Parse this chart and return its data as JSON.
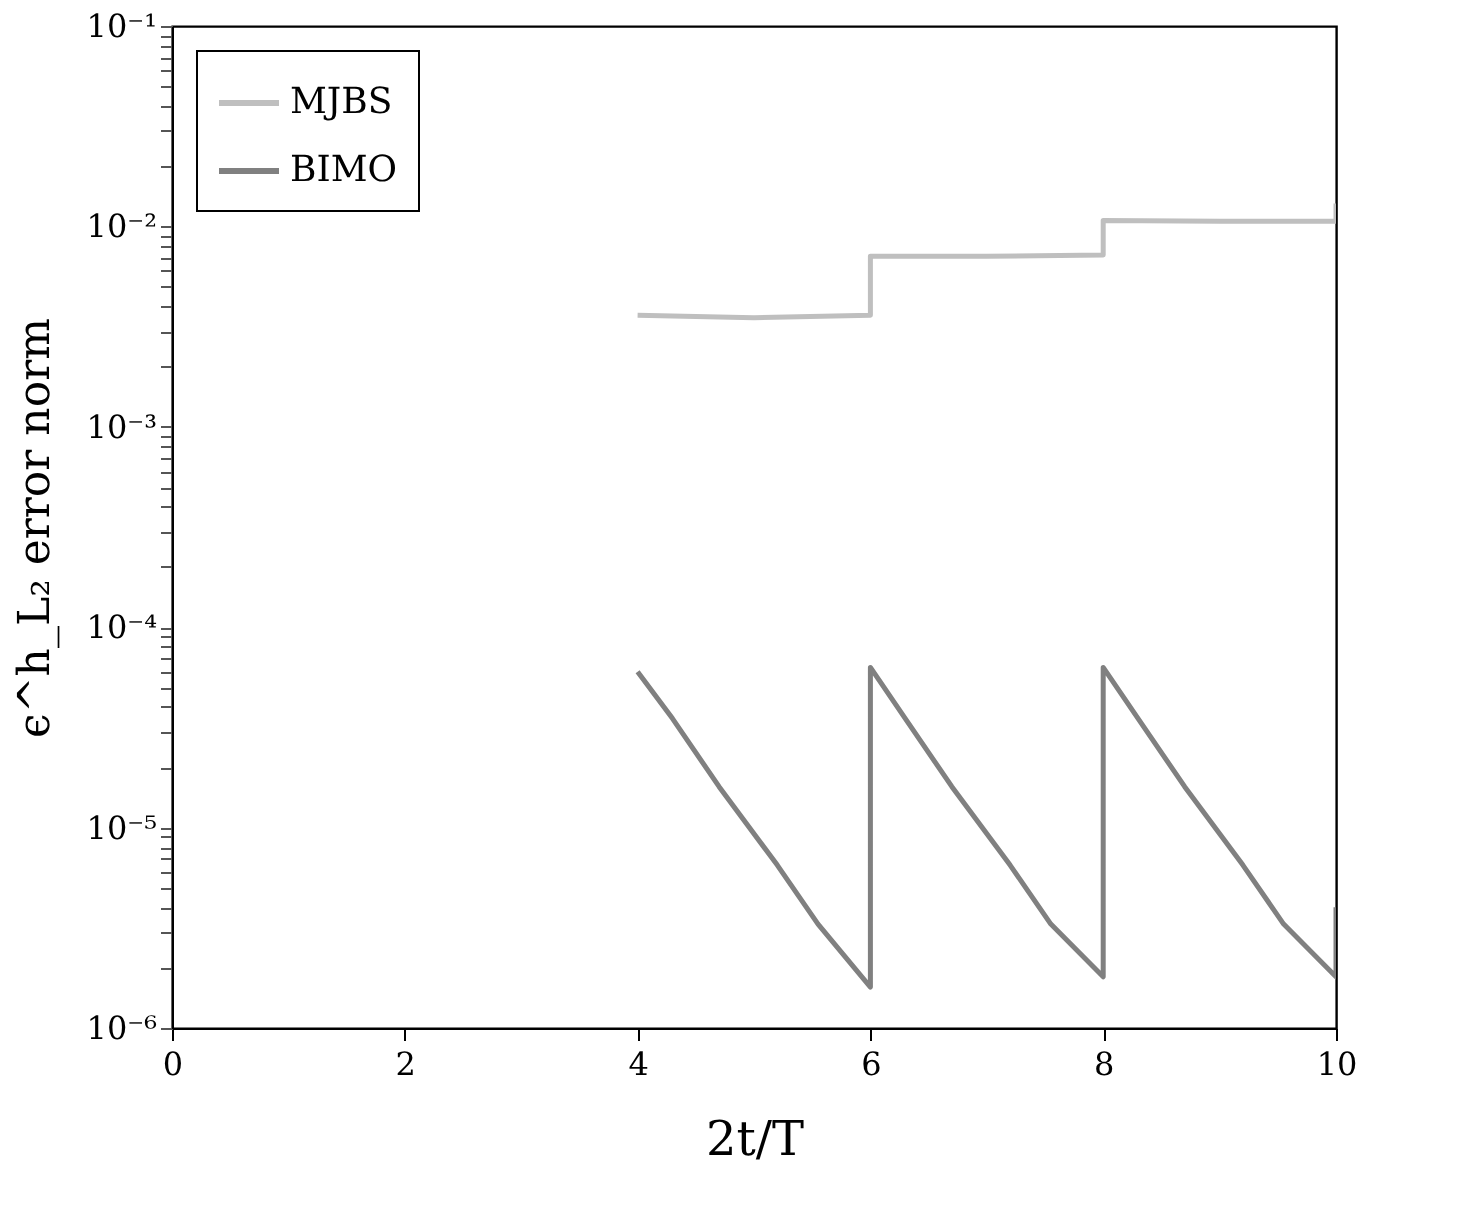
{
  "chart_data": {
    "type": "line",
    "xlabel": "2t/T",
    "ylabel": "ϵ^h_L₂ error norm",
    "xlim": [
      0,
      10
    ],
    "xticks": [
      0,
      2,
      4,
      6,
      8,
      10
    ],
    "ylim": [
      1e-06,
      0.1
    ],
    "yticks": [
      {
        "value": 1e-06,
        "label": "10⁻⁶"
      },
      {
        "value": 2e-06,
        "label": null
      },
      {
        "value": 3e-06,
        "label": null
      },
      {
        "value": 4e-06,
        "label": null
      },
      {
        "value": 5e-06,
        "label": null
      },
      {
        "value": 6e-06,
        "label": null
      },
      {
        "value": 7e-06,
        "label": null
      },
      {
        "value": 8e-06,
        "label": null
      },
      {
        "value": 9e-06,
        "label": null
      },
      {
        "value": 1e-05,
        "label": "10⁻⁵"
      },
      {
        "value": 2e-05,
        "label": null
      },
      {
        "value": 3e-05,
        "label": null
      },
      {
        "value": 4e-05,
        "label": null
      },
      {
        "value": 5e-05,
        "label": null
      },
      {
        "value": 6e-05,
        "label": null
      },
      {
        "value": 7e-05,
        "label": null
      },
      {
        "value": 8e-05,
        "label": null
      },
      {
        "value": 9e-05,
        "label": null
      },
      {
        "value": 0.0001,
        "label": "10⁻⁴"
      },
      {
        "value": 0.0002,
        "label": null
      },
      {
        "value": 0.0003,
        "label": null
      },
      {
        "value": 0.0004,
        "label": null
      },
      {
        "value": 0.0005,
        "label": null
      },
      {
        "value": 0.0006,
        "label": null
      },
      {
        "value": 0.0007,
        "label": null
      },
      {
        "value": 0.0008,
        "label": null
      },
      {
        "value": 0.0009,
        "label": null
      },
      {
        "value": 0.001,
        "label": "10⁻³"
      },
      {
        "value": 0.002,
        "label": null
      },
      {
        "value": 0.003,
        "label": null
      },
      {
        "value": 0.004,
        "label": null
      },
      {
        "value": 0.005,
        "label": null
      },
      {
        "value": 0.006,
        "label": null
      },
      {
        "value": 0.007,
        "label": null
      },
      {
        "value": 0.008,
        "label": null
      },
      {
        "value": 0.009,
        "label": null
      },
      {
        "value": 0.01,
        "label": "10⁻²"
      },
      {
        "value": 0.02,
        "label": null
      },
      {
        "value": 0.03,
        "label": null
      },
      {
        "value": 0.04,
        "label": null
      },
      {
        "value": 0.05,
        "label": null
      },
      {
        "value": 0.06,
        "label": null
      },
      {
        "value": 0.07,
        "label": null
      },
      {
        "value": 0.08,
        "label": null
      },
      {
        "value": 0.09,
        "label": null
      },
      {
        "value": 0.1,
        "label": "10⁻¹"
      }
    ],
    "log": "y",
    "grid": false,
    "legend": "top left",
    "marker": "none",
    "line_style": "solid",
    "series": [
      {
        "name": "MJBS",
        "color": "#bfbfbf",
        "x": [
          4,
          5,
          6,
          6,
          7,
          8,
          8,
          9,
          10,
          10
        ],
        "values": [
          0.0036,
          0.0035,
          0.0036,
          0.0071,
          0.0071,
          0.0072,
          0.0107,
          0.0106,
          0.0106,
          0.013
        ]
      },
      {
        "name": "BIMO",
        "color": "#808080",
        "x": [
          4,
          4.3,
          4.7,
          5.2,
          5.55,
          6,
          6,
          6.3,
          6.7,
          7.2,
          7.55,
          8,
          8,
          8.3,
          8.7,
          9.2,
          9.55,
          10,
          10
        ],
        "values": [
          6e-05,
          3.5e-05,
          1.6e-05,
          6.5e-06,
          3.3e-06,
          1.6e-06,
          6.3e-05,
          3.5e-05,
          1.6e-05,
          6.5e-06,
          3.3e-06,
          1.8e-06,
          6.3e-05,
          3.5e-05,
          1.6e-05,
          6.5e-06,
          3.3e-06,
          1.8e-06,
          4e-06
        ]
      }
    ]
  }
}
